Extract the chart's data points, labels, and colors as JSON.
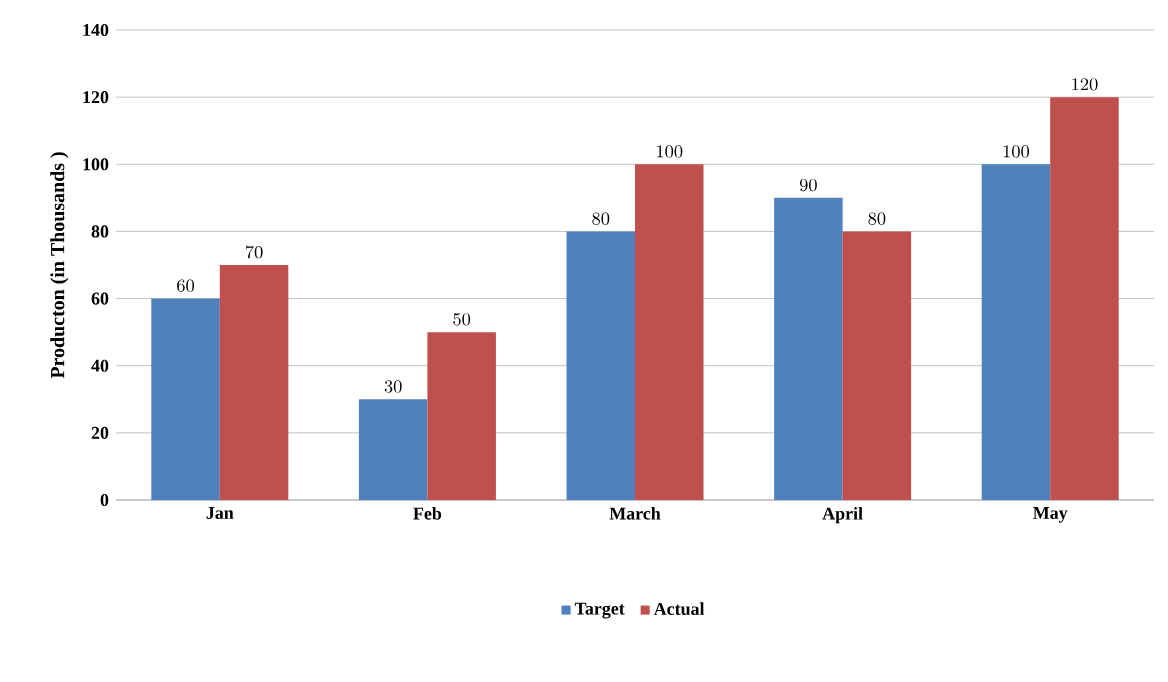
{
  "chart_data": {
    "type": "bar",
    "ylabel": "Producton (in Thousands )",
    "categories": [
      "Jan",
      "Feb",
      "March",
      "April",
      "May"
    ],
    "series": [
      {
        "name": "Target",
        "color": "#4f81bd",
        "values": [
          60,
          30,
          80,
          90,
          100
        ]
      },
      {
        "name": "Actual",
        "color": "#c0504d",
        "values": [
          70,
          50,
          100,
          80,
          120
        ]
      }
    ],
    "ylim": [
      0,
      140
    ],
    "yticks": [
      0,
      20,
      40,
      60,
      80,
      100,
      120,
      140
    ],
    "grid": "y",
    "legend": "bottom",
    "data_labels": true
  }
}
